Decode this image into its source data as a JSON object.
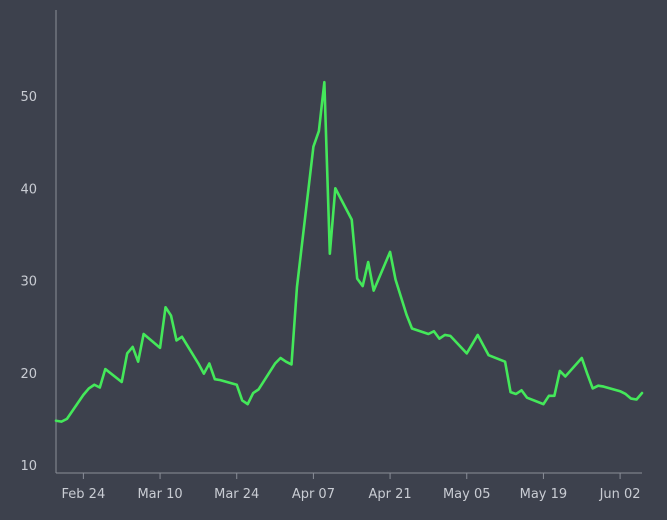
{
  "chart_data": {
    "type": "line",
    "title": "",
    "xlabel": "",
    "ylabel": "",
    "x_tick_labels": [
      "Feb 24",
      "Mar 10",
      "Mar 24",
      "Apr 07",
      "Apr 21",
      "May 05",
      "May 19",
      "Jun 02"
    ],
    "y_tick_labels": [
      "10",
      "20",
      "30",
      "40",
      "50"
    ],
    "y_ticks": [
      10,
      20,
      30,
      40,
      50
    ],
    "ylim": [
      10,
      56
    ],
    "xlim": [
      "2025-02-19",
      "2025-06-06"
    ],
    "grid": false,
    "series": [
      {
        "color": "#44e85a",
        "points": [
          [
            "2025-02-19",
            14.8
          ],
          [
            "2025-02-20",
            14.7
          ],
          [
            "2025-02-21",
            15.0
          ],
          [
            "2025-02-24",
            17.6
          ],
          [
            "2025-02-25",
            18.3
          ],
          [
            "2025-02-26",
            18.7
          ],
          [
            "2025-02-27",
            18.4
          ],
          [
            "2025-02-28",
            20.4
          ],
          [
            "2025-03-03",
            19.0
          ],
          [
            "2025-03-04",
            22.1
          ],
          [
            "2025-03-05",
            22.8
          ],
          [
            "2025-03-06",
            21.2
          ],
          [
            "2025-03-07",
            24.2
          ],
          [
            "2025-03-10",
            22.7
          ],
          [
            "2025-03-11",
            27.1
          ],
          [
            "2025-03-12",
            26.2
          ],
          [
            "2025-03-13",
            23.5
          ],
          [
            "2025-03-14",
            23.9
          ],
          [
            "2025-03-17",
            21.0
          ],
          [
            "2025-03-18",
            19.9
          ],
          [
            "2025-03-19",
            21.0
          ],
          [
            "2025-03-20",
            19.3
          ],
          [
            "2025-03-21",
            19.2
          ],
          [
            "2025-03-24",
            18.7
          ],
          [
            "2025-03-25",
            17.0
          ],
          [
            "2025-03-26",
            16.6
          ],
          [
            "2025-03-27",
            17.8
          ],
          [
            "2025-03-28",
            18.2
          ],
          [
            "2025-03-31",
            21.0
          ],
          [
            "2025-04-01",
            21.6
          ],
          [
            "2025-04-02",
            21.2
          ],
          [
            "2025-04-03",
            20.9
          ],
          [
            "2025-04-04",
            29.3
          ],
          [
            "2025-04-07",
            44.5
          ],
          [
            "2025-04-08",
            46.2
          ],
          [
            "2025-04-09",
            51.5
          ],
          [
            "2025-04-10",
            32.9
          ],
          [
            "2025-04-11",
            40.0
          ],
          [
            "2025-04-14",
            36.6
          ],
          [
            "2025-04-15",
            30.2
          ],
          [
            "2025-04-16",
            29.4
          ],
          [
            "2025-04-17",
            32.0
          ],
          [
            "2025-04-18",
            28.9
          ],
          [
            "2025-04-21",
            33.1
          ],
          [
            "2025-04-22",
            30.1
          ],
          [
            "2025-04-23",
            28.2
          ],
          [
            "2025-04-24",
            26.3
          ],
          [
            "2025-04-25",
            24.8
          ],
          [
            "2025-04-28",
            24.2
          ],
          [
            "2025-04-29",
            24.5
          ],
          [
            "2025-04-30",
            23.7
          ],
          [
            "2025-05-01",
            24.1
          ],
          [
            "2025-05-02",
            24.0
          ],
          [
            "2025-05-05",
            22.1
          ],
          [
            "2025-05-06",
            23.1
          ],
          [
            "2025-05-07",
            24.1
          ],
          [
            "2025-05-08",
            23.0
          ],
          [
            "2025-05-09",
            21.9
          ],
          [
            "2025-05-12",
            21.2
          ],
          [
            "2025-05-13",
            17.9
          ],
          [
            "2025-05-14",
            17.7
          ],
          [
            "2025-05-15",
            18.1
          ],
          [
            "2025-05-16",
            17.3
          ],
          [
            "2025-05-19",
            16.6
          ],
          [
            "2025-05-20",
            17.5
          ],
          [
            "2025-05-21",
            17.5
          ],
          [
            "2025-05-22",
            20.2
          ],
          [
            "2025-05-23",
            19.6
          ],
          [
            "2025-05-26",
            21.6
          ],
          [
            "2025-05-27",
            19.9
          ],
          [
            "2025-05-28",
            18.3
          ],
          [
            "2025-05-29",
            18.6
          ],
          [
            "2025-05-30",
            18.5
          ],
          [
            "2025-06-02",
            18.0
          ],
          [
            "2025-06-03",
            17.7
          ],
          [
            "2025-06-04",
            17.2
          ],
          [
            "2025-06-05",
            17.1
          ],
          [
            "2025-06-06",
            17.8
          ]
        ]
      }
    ],
    "x_tick_dates": [
      "2025-02-24",
      "2025-03-10",
      "2025-03-24",
      "2025-04-07",
      "2025-04-21",
      "2025-05-05",
      "2025-05-19",
      "2025-06-02"
    ]
  }
}
